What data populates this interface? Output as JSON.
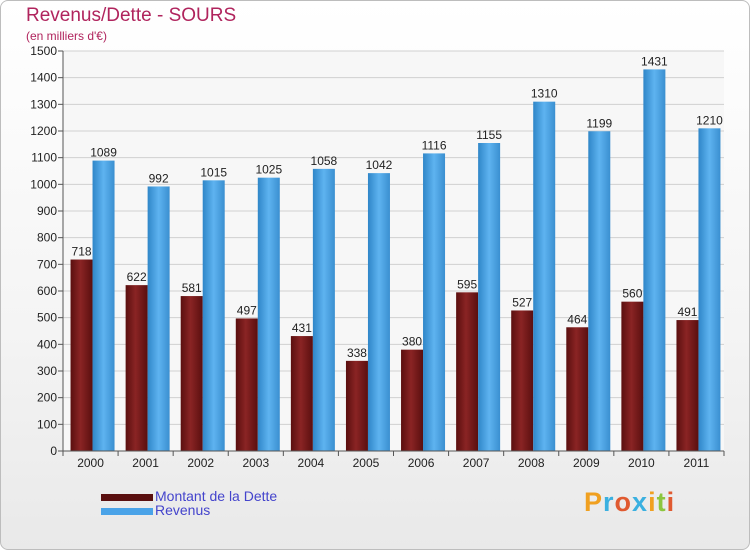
{
  "title": "Revenus/Dette - SOURS",
  "subtitle": "(en milliers d'€)",
  "logo": {
    "text": "Proxiti",
    "colors": [
      "#f0a020",
      "#3ab0e0",
      "#e05a30",
      "#3ab0e0",
      "#f0a020",
      "#8cc63f",
      "#e05a30"
    ]
  },
  "chart_data": {
    "type": "bar",
    "categories": [
      "2000",
      "2001",
      "2002",
      "2003",
      "2004",
      "2005",
      "2006",
      "2007",
      "2008",
      "2009",
      "2010",
      "2011"
    ],
    "series": [
      {
        "name": "Montant de la Dette",
        "color": "#7a1a1a",
        "values": [
          718,
          622,
          581,
          497,
          431,
          338,
          380,
          595,
          527,
          464,
          560,
          491
        ]
      },
      {
        "name": "Revenus",
        "color": "#4aa3e8",
        "values": [
          1089,
          992,
          1015,
          1025,
          1058,
          1042,
          1116,
          1155,
          1310,
          1199,
          1431,
          1210
        ]
      }
    ],
    "ylim": [
      0,
      1500
    ],
    "ytick_step": 100,
    "grid": true,
    "legend_position": "bottom-left"
  }
}
